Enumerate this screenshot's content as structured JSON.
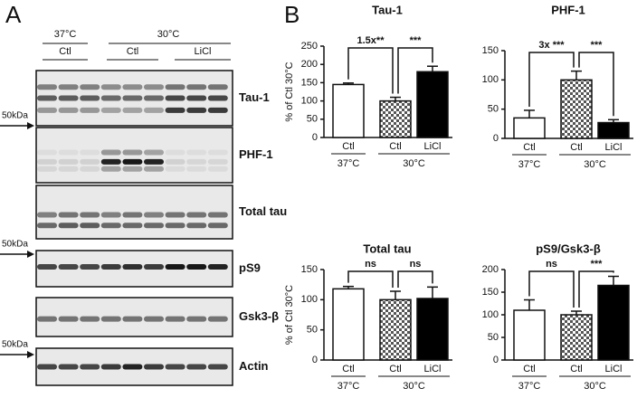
{
  "panel_a": {
    "label": "A",
    "temperatures": [
      "37°C",
      "30°C"
    ],
    "conditions": [
      "Ctl",
      "Ctl",
      "LiCl"
    ],
    "blots": [
      "Tau-1",
      "PHF-1",
      "Total tau",
      "pS9",
      "Gsk3-β",
      "Actin"
    ],
    "markers": [
      "50kDa",
      "50kDa",
      "50kDa"
    ]
  },
  "panel_b_label": "B",
  "chart_data": [
    {
      "type": "bar",
      "title": "Tau-1",
      "ylabel": "% of Ctl 30°C",
      "groups": [
        {
          "label": "37°C",
          "categories": [
            "Ctl"
          ]
        },
        {
          "label": "30°C",
          "categories": [
            "Ctl",
            "LiCl"
          ]
        }
      ],
      "values": [
        145,
        100,
        180
      ],
      "errors": [
        4,
        10,
        15
      ],
      "fills": [
        "white",
        "checker",
        "black"
      ],
      "ylim": [
        0,
        250
      ],
      "yticks": [
        0,
        50,
        100,
        150,
        200,
        250
      ],
      "annotations": [
        "1.5x**",
        "***"
      ]
    },
    {
      "type": "bar",
      "title": "PHF-1",
      "groups": [
        {
          "label": "37°C",
          "categories": [
            "Ctl"
          ]
        },
        {
          "label": "30°C",
          "categories": [
            "Ctl",
            "LiCl"
          ]
        }
      ],
      "values": [
        35,
        100,
        27
      ],
      "errors": [
        13,
        15,
        5
      ],
      "fills": [
        "white",
        "checker",
        "black"
      ],
      "ylim": [
        0,
        150
      ],
      "yticks": [
        0,
        50,
        100,
        150
      ],
      "annotations": [
        "3x ***",
        "***"
      ]
    },
    {
      "type": "bar",
      "title": "Total tau",
      "ylabel": "% of Ctl 30°C",
      "groups": [
        {
          "label": "37°C",
          "categories": [
            "Ctl"
          ]
        },
        {
          "label": "30°C",
          "categories": [
            "Ctl",
            "LiCl"
          ]
        }
      ],
      "values": [
        118,
        100,
        102
      ],
      "errors": [
        4,
        14,
        19
      ],
      "fills": [
        "white",
        "checker",
        "black"
      ],
      "ylim": [
        0,
        150
      ],
      "yticks": [
        0,
        50,
        100,
        150
      ],
      "annotations": [
        "ns",
        "ns"
      ]
    },
    {
      "type": "bar",
      "title": "pS9/Gsk3-β",
      "groups": [
        {
          "label": "37°C",
          "categories": [
            "Ctl"
          ]
        },
        {
          "label": "30°C",
          "categories": [
            "Ctl",
            "LiCl"
          ]
        }
      ],
      "values": [
        110,
        100,
        165
      ],
      "errors": [
        23,
        8,
        20
      ],
      "fills": [
        "white",
        "checker",
        "black"
      ],
      "ylim": [
        0,
        200
      ],
      "yticks": [
        0,
        50,
        100,
        150,
        200
      ],
      "annotations": [
        "ns",
        "***"
      ]
    }
  ]
}
